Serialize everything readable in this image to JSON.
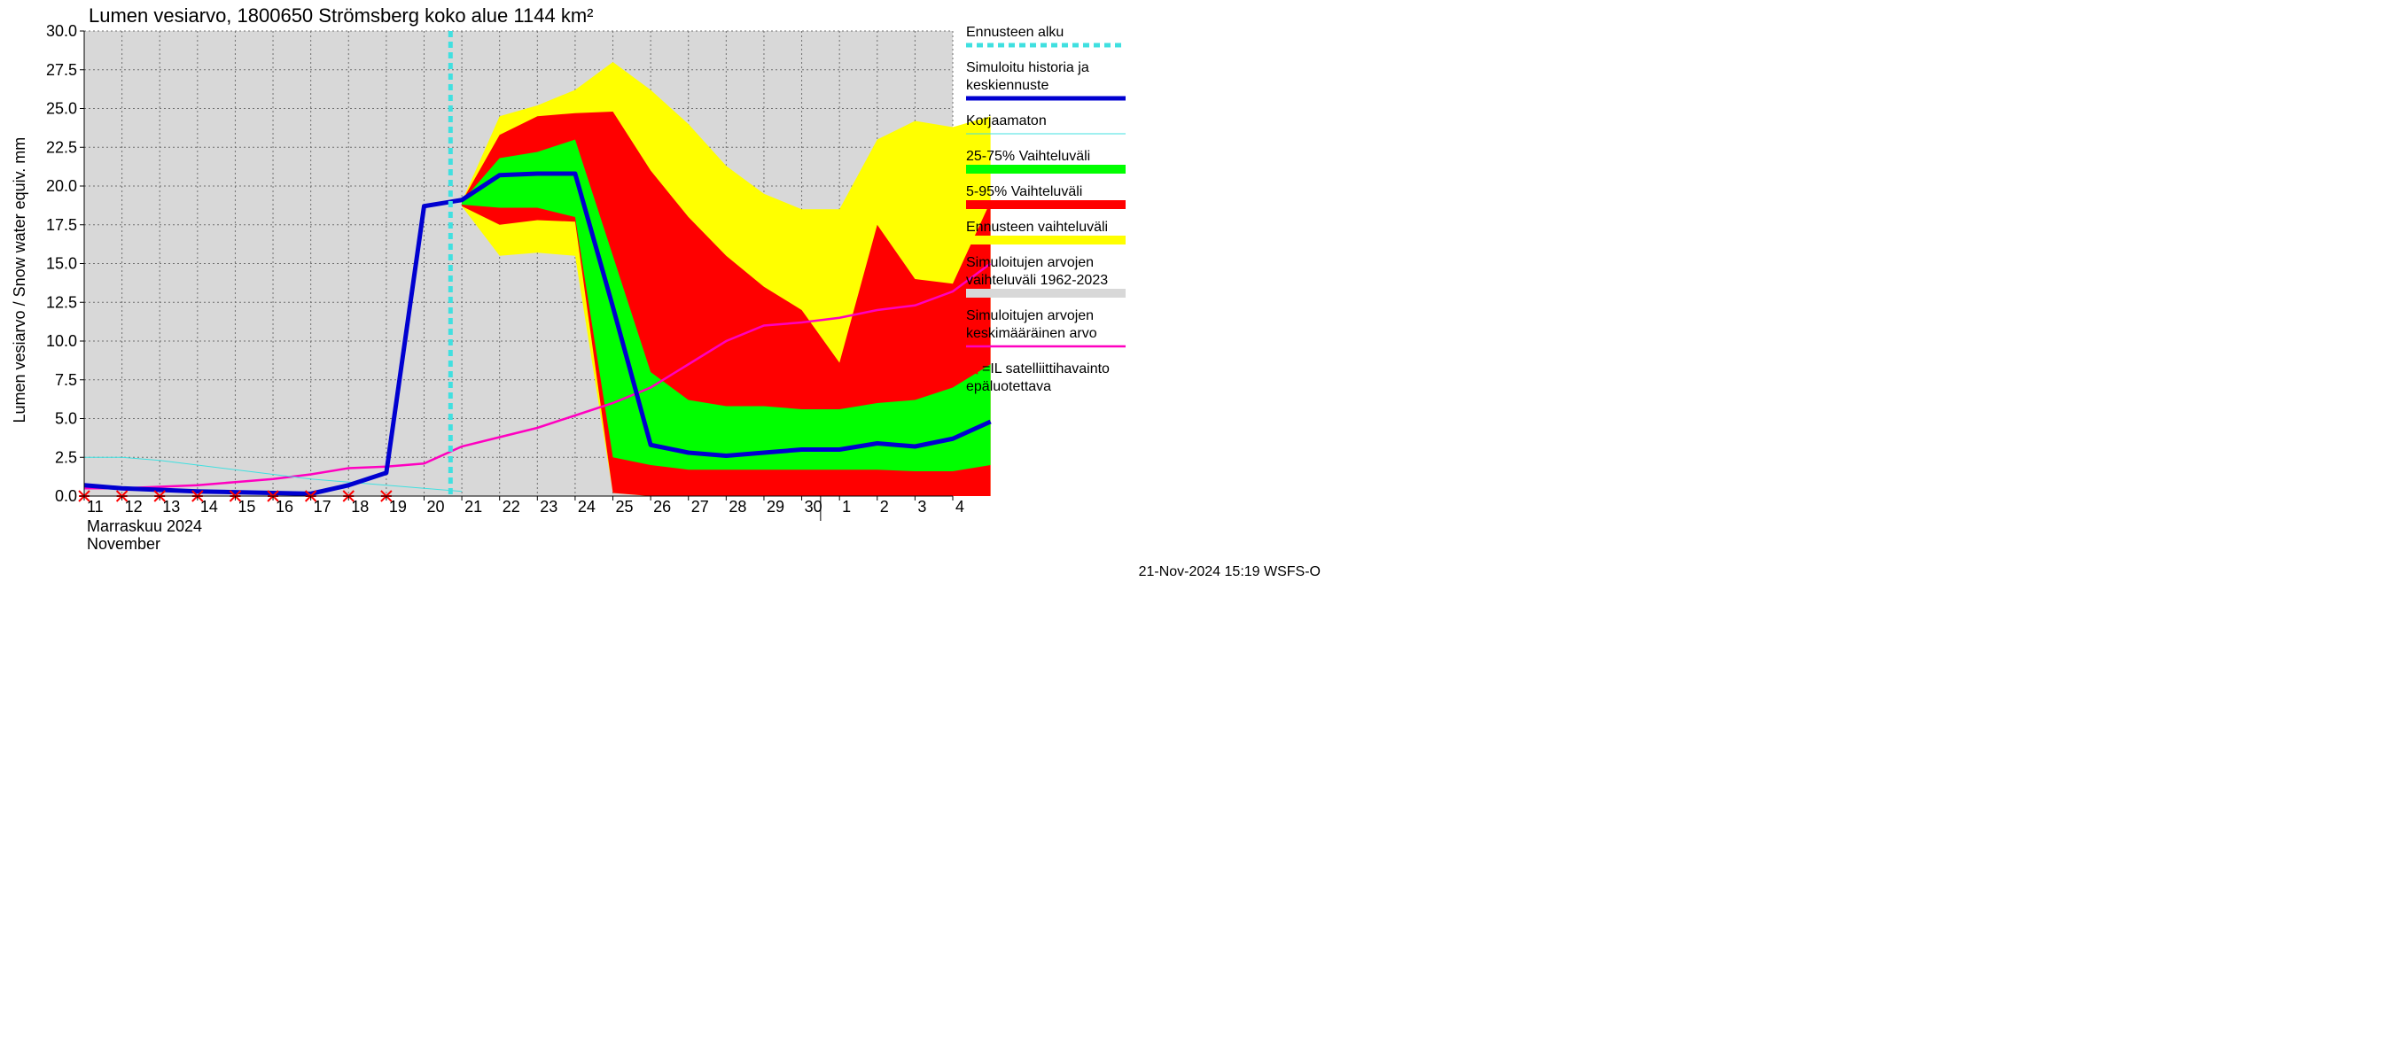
{
  "chart": {
    "type": "line-area",
    "title": "Lumen vesiarvo, 1800650 Strömsberg koko alue 1144 km²",
    "y_axis": {
      "label": "Lumen vesiarvo / Snow water equiv.    mm",
      "min": 0.0,
      "max": 30.0,
      "ticks": [
        0.0,
        2.5,
        5.0,
        7.5,
        10.0,
        12.5,
        15.0,
        17.5,
        20.0,
        22.5,
        25.0,
        27.5,
        30.0
      ],
      "tick_labels": [
        "0.0",
        "2.5",
        "5.0",
        "7.5",
        "10.0",
        "12.5",
        "15.0",
        "17.5",
        "20.0",
        "22.5",
        "25.0",
        "27.5",
        "30.0"
      ],
      "label_fontsize": 18
    },
    "x_axis": {
      "categories": [
        "11",
        "12",
        "13",
        "14",
        "15",
        "16",
        "17",
        "18",
        "19",
        "20",
        "21",
        "22",
        "23",
        "24",
        "25",
        "26",
        "27",
        "28",
        "29",
        "30",
        "1",
        "2",
        "3",
        "4"
      ],
      "month_line1": "Marraskuu 2024",
      "month_line2": "November",
      "month_boundary_index": 20,
      "label_fontsize": 18
    },
    "forecast_start_index": 9.7,
    "series": {
      "gray_band": {
        "color": "#d8d8d8",
        "upper": [
          30,
          30,
          30,
          30,
          30,
          30,
          30,
          30,
          30,
          30,
          30,
          30,
          30,
          30,
          30,
          30,
          30,
          30,
          30,
          30,
          30,
          30,
          30,
          30
        ],
        "lower": [
          0,
          0,
          0,
          0,
          0,
          0,
          0,
          0,
          0,
          0,
          0,
          0,
          0,
          0,
          0,
          0,
          0,
          0,
          0,
          0,
          0,
          0,
          0,
          0
        ]
      },
      "yellow_band": {
        "color": "#ffff00",
        "start_index": 10,
        "upper": [
          19.0,
          24.5,
          25.2,
          26.2,
          28.0,
          26.2,
          24.0,
          21.3,
          19.5,
          18.5,
          18.5,
          23.0,
          24.2,
          23.8,
          24.5
        ],
        "lower": [
          18.7,
          15.5,
          15.7,
          15.5,
          0.2,
          0,
          0,
          0,
          0,
          0,
          0,
          0,
          0,
          0,
          0
        ]
      },
      "red_band": {
        "color": "#ff0000",
        "start_index": 10,
        "upper": [
          19.0,
          23.3,
          24.5,
          24.7,
          24.8,
          21.0,
          18.0,
          15.5,
          13.5,
          12.0,
          8.6,
          17.5,
          14.0,
          13.7,
          19.0
        ],
        "lower": [
          18.7,
          17.5,
          17.8,
          17.7,
          0.2,
          0,
          0,
          0,
          0,
          0,
          0,
          0,
          0,
          0,
          0
        ]
      },
      "green_band": {
        "color": "#00ff00",
        "start_index": 10,
        "upper": [
          19.0,
          21.8,
          22.2,
          23.0,
          15.5,
          8.0,
          6.2,
          5.8,
          5.8,
          5.6,
          5.6,
          6.0,
          6.2,
          7.0,
          8.5
        ],
        "lower": [
          18.8,
          18.6,
          18.6,
          18.0,
          2.5,
          2.0,
          1.7,
          1.7,
          1.7,
          1.7,
          1.7,
          1.7,
          1.6,
          1.6,
          2.0
        ]
      },
      "blue_line": {
        "color": "#0000d0",
        "width": 5,
        "values": [
          0.7,
          0.5,
          0.4,
          0.3,
          0.25,
          0.2,
          0.15,
          0.7,
          1.5,
          18.7,
          19.1,
          20.7,
          20.8,
          20.8,
          12.2,
          3.3,
          2.8,
          2.6,
          2.8,
          3.0,
          3.0,
          3.4,
          3.2,
          3.7,
          4.8
        ]
      },
      "cyan_thin": {
        "color": "#40e0e0",
        "width": 1,
        "values": [
          2.5,
          2.5,
          2.3,
          2.0,
          1.7,
          1.4,
          1.1,
          0.9,
          0.7,
          0.5,
          0.3
        ]
      },
      "magenta_line": {
        "color": "#ff00c0",
        "width": 2.5,
        "values": [
          0.5,
          0.5,
          0.6,
          0.7,
          0.9,
          1.1,
          1.4,
          1.8,
          1.9,
          2.1,
          3.2,
          3.8,
          4.4,
          5.2,
          6.0,
          7.0,
          8.5,
          10.0,
          11.0,
          11.2,
          11.5,
          12.0,
          12.3,
          13.2,
          15.0
        ]
      },
      "red_x_marks": {
        "color": "#ff0000",
        "indices": [
          0,
          1,
          2,
          3,
          4,
          5,
          6,
          7,
          8
        ],
        "y": 0
      }
    },
    "forecast_line": {
      "color": "#40e0e0",
      "dash": "7,5",
      "width": 5
    },
    "plot": {
      "background": "#ffffff",
      "grid_color": "#707070",
      "grid_dash": "2,3",
      "border_color": "#000000"
    },
    "title_fontsize": 22
  },
  "legend": {
    "items": [
      {
        "lines": [
          "Ennusteen alku"
        ],
        "type": "line",
        "color": "#40e0e0",
        "dash": "7,5",
        "width": 5
      },
      {
        "lines": [
          "Simuloitu historia ja",
          "keskiennuste"
        ],
        "type": "line",
        "color": "#0000d0",
        "width": 5
      },
      {
        "lines": [
          "Korjaamaton"
        ],
        "type": "line",
        "color": "#40e0e0",
        "width": 1
      },
      {
        "lines": [
          "25-75% Vaihteluväli"
        ],
        "type": "swatch",
        "color": "#00ff00"
      },
      {
        "lines": [
          "5-95% Vaihteluväli"
        ],
        "type": "swatch",
        "color": "#ff0000"
      },
      {
        "lines": [
          "Ennusteen vaihteluväli"
        ],
        "type": "swatch",
        "color": "#ffff00"
      },
      {
        "lines": [
          "Simuloitujen arvojen",
          "vaihteluväli 1962-2023"
        ],
        "type": "swatch",
        "color": "#d8d8d8"
      },
      {
        "lines": [
          "Simuloitujen arvojen",
          "keskimääräinen arvo"
        ],
        "type": "line",
        "color": "#ff00c0",
        "width": 2.5
      },
      {
        "lines": [
          "=IL satelliittihavainto",
          "epäluotettava"
        ],
        "type": "xmark",
        "color": "#ff0000"
      }
    ]
  },
  "footer": {
    "timestamp": "21-Nov-2024 15:19 WSFS-O"
  }
}
